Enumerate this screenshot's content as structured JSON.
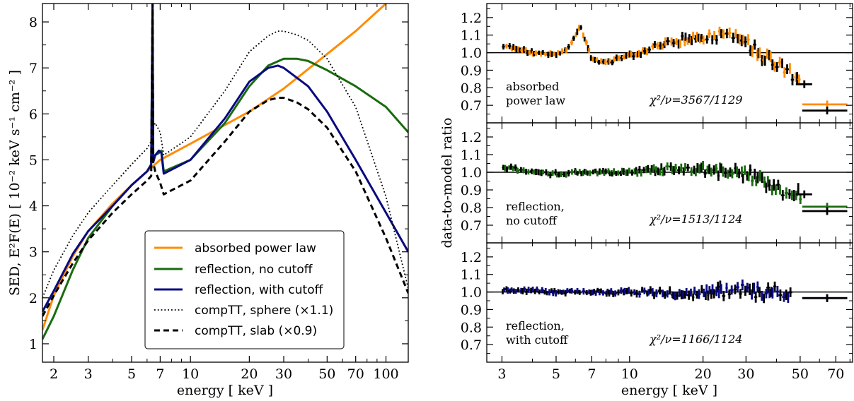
{
  "chart_data": [
    {
      "type": "line",
      "xscale": "log",
      "xlim": [
        1.75,
        130
      ],
      "ylim": [
        0.6,
        8.4
      ],
      "xlabel": "energy [ keV ]",
      "ylabel": "SED, E²F(E) [ 10⁻² keV s⁻¹ cm⁻² ]",
      "xticks": [
        2,
        3,
        5,
        7,
        10,
        20,
        30,
        50,
        70,
        100
      ],
      "xtick_labels": [
        "2",
        "3",
        "5",
        "7",
        "10",
        "20",
        "30",
        "50",
        "70",
        "100"
      ],
      "yticks": [
        1,
        2,
        3,
        4,
        5,
        6,
        7,
        8
      ],
      "ytick_labels": [
        "1",
        "2",
        "3",
        "4",
        "5",
        "6",
        "7",
        "8"
      ],
      "legend_position": "bottom-center",
      "series": [
        {
          "name": "absorbed power law",
          "color": "#ff8c00",
          "style": "solid",
          "x": [
            1.75,
            2,
            2.5,
            3,
            4,
            5,
            6,
            7,
            10,
            20,
            30,
            50,
            70,
            100
          ],
          "y": [
            1.3,
            2.05,
            2.9,
            3.45,
            4.05,
            4.45,
            4.75,
            5.0,
            5.35,
            6.05,
            6.55,
            7.3,
            7.8,
            8.4
          ]
        },
        {
          "name": "reflection, no cutoff",
          "color": "#1a6b0f",
          "style": "solid",
          "x": [
            1.75,
            2,
            2.5,
            3,
            4,
            5,
            6,
            6.3,
            6.4,
            6.45,
            6.6,
            6.9,
            7.1,
            7.3,
            10,
            15,
            20,
            25,
            30,
            35,
            40,
            50,
            70,
            100,
            130
          ],
          "y": [
            1.1,
            1.6,
            2.6,
            3.3,
            4.0,
            4.45,
            4.75,
            4.9,
            8.4,
            4.95,
            5.1,
            5.15,
            5.2,
            4.75,
            5.0,
            5.8,
            6.6,
            7.05,
            7.2,
            7.2,
            7.15,
            6.95,
            6.6,
            6.15,
            5.6
          ]
        },
        {
          "name": "reflection, with cutoff",
          "color": "#0a0a80",
          "style": "solid",
          "x": [
            1.75,
            2,
            2.5,
            3,
            4,
            5,
            6,
            6.3,
            6.4,
            6.45,
            6.6,
            6.9,
            7.1,
            7.3,
            10,
            15,
            20,
            25,
            28,
            30,
            40,
            50,
            70,
            100,
            130
          ],
          "y": [
            1.7,
            2.15,
            2.95,
            3.45,
            4.0,
            4.45,
            4.75,
            4.9,
            8.4,
            4.95,
            5.1,
            5.2,
            5.15,
            4.7,
            5.0,
            5.9,
            6.7,
            7.0,
            7.05,
            7.0,
            6.6,
            6.05,
            5.0,
            3.85,
            3.0
          ]
        },
        {
          "name": "compTT, sphere (×1.1)",
          "color": "#000000",
          "style": "dotted",
          "x": [
            1.75,
            2,
            2.5,
            3,
            4,
            5,
            6,
            6.3,
            6.4,
            6.45,
            6.6,
            7.0,
            7.3,
            10,
            15,
            20,
            25,
            28,
            30,
            35,
            40,
            50,
            70,
            100,
            130
          ],
          "y": [
            2.0,
            2.6,
            3.35,
            3.85,
            4.45,
            4.9,
            5.25,
            5.4,
            8.4,
            5.7,
            5.8,
            5.6,
            5.1,
            5.5,
            6.5,
            7.35,
            7.7,
            7.8,
            7.8,
            7.72,
            7.6,
            7.2,
            6.15,
            4.2,
            2.2
          ]
        },
        {
          "name": "compTT, slab (×0.9)",
          "color": "#000000",
          "style": "dashed",
          "x": [
            1.75,
            2,
            2.5,
            3,
            4,
            5,
            6,
            6.3,
            6.4,
            6.45,
            6.6,
            7.0,
            7.3,
            10,
            15,
            20,
            25,
            28,
            30,
            35,
            40,
            50,
            70,
            100,
            130
          ],
          "y": [
            1.6,
            2.05,
            2.75,
            3.25,
            3.85,
            4.25,
            4.55,
            4.65,
            8.4,
            4.95,
            4.75,
            4.5,
            4.25,
            4.55,
            5.4,
            6.05,
            6.3,
            6.35,
            6.35,
            6.25,
            6.1,
            5.7,
            4.75,
            3.3,
            2.1
          ]
        }
      ]
    },
    {
      "type": "scatter",
      "xscale": "log",
      "xlim": [
        2.6,
        82
      ],
      "xlabel": "energy [ keV ]",
      "ylabel": "data-to-model ratio",
      "xticks": [
        3,
        5,
        7,
        10,
        20,
        30,
        50,
        70
      ],
      "xtick_labels": [
        "3",
        "5",
        "7",
        "10",
        "20",
        "30",
        "50",
        "70"
      ],
      "panels": [
        {
          "label_lines": [
            "absorbed",
            "power law"
          ],
          "chi2": "χ²/ν=3567/1129",
          "ylim": [
            0.6,
            1.28
          ],
          "yticks": [
            0.7,
            0.8,
            0.9,
            1.0,
            1.1,
            1.2
          ],
          "ytick_labels": [
            "0.7",
            "0.8",
            "0.9",
            "1.0",
            "1.1",
            "1.2"
          ],
          "model_color": "#ff8c00",
          "trend": {
            "x": [
              3,
              3.5,
              4,
              4.5,
              5,
              5.5,
              6,
              6.3,
              6.6,
              7,
              8,
              9,
              10,
              12,
              15,
              18,
              20,
              25,
              28,
              30,
              35,
              40,
              45,
              50
            ],
            "y": [
              1.04,
              1.02,
              1.0,
              0.99,
              0.99,
              1.01,
              1.1,
              1.15,
              1.07,
              0.96,
              0.95,
              0.96,
              0.98,
              1.02,
              1.06,
              1.08,
              1.09,
              1.11,
              1.11,
              1.06,
              0.99,
              0.94,
              0.89,
              0.86
            ]
          },
          "high_energy_bins": [
            {
              "group": "orange",
              "x": 64.5,
              "xmin": 51,
              "xmax": 78,
              "y": 0.705
            },
            {
              "group": "black",
              "x": 64.5,
              "xmin": 51,
              "xmax": 78,
              "y": 0.67
            },
            {
              "group": "black",
              "x": 52,
              "xmin": 48,
              "xmax": 56,
              "y": 0.82
            }
          ]
        },
        {
          "label_lines": [
            "reflection,",
            "no cutoff"
          ],
          "chi2": "χ²/ν=1513/1124",
          "ylim": [
            0.6,
            1.28
          ],
          "yticks": [
            0.7,
            0.8,
            0.9,
            1.0,
            1.1,
            1.2
          ],
          "ytick_labels": [
            "0.7",
            "0.8",
            "0.9",
            "1.0",
            "1.1",
            "1.2"
          ],
          "model_color": "#1a6b0f",
          "trend": {
            "x": [
              3,
              4,
              5,
              6,
              7,
              8,
              10,
              12,
              15,
              18,
              20,
              25,
              28,
              30,
              35,
              40,
              45,
              50
            ],
            "y": [
              1.03,
              1.0,
              0.99,
              1.0,
              1.0,
              1.0,
              1.0,
              1.01,
              1.02,
              1.02,
              1.02,
              1.0,
              1.0,
              0.99,
              0.95,
              0.91,
              0.89,
              0.87
            ]
          },
          "high_energy_bins": [
            {
              "group": "green",
              "x": 64.5,
              "xmin": 51,
              "xmax": 78,
              "y": 0.805
            },
            {
              "group": "black",
              "x": 64.5,
              "xmin": 51,
              "xmax": 78,
              "y": 0.78
            },
            {
              "group": "black",
              "x": 52,
              "xmin": 48,
              "xmax": 56,
              "y": 0.875
            }
          ]
        },
        {
          "label_lines": [
            "reflection,",
            "with cutoff"
          ],
          "chi2": "χ²/ν=1166/1124",
          "ylim": [
            0.6,
            1.28
          ],
          "yticks": [
            0.7,
            0.8,
            0.9,
            1.0,
            1.1,
            1.2
          ],
          "ytick_labels": [
            "0.7",
            "0.8",
            "0.9",
            "1.0",
            "1.1",
            "1.2"
          ],
          "model_color": "#0a0a80",
          "trend": {
            "x": [
              3,
              4,
              5,
              6,
              7,
              8,
              10,
              12,
              15,
              18,
              20,
              25,
              28,
              30,
              35,
              40,
              45
            ],
            "y": [
              1.01,
              1.01,
              1.0,
              1.0,
              1.0,
              1.0,
              1.0,
              1.0,
              0.99,
              0.99,
              1.0,
              1.01,
              1.02,
              1.01,
              1.0,
              1.0,
              0.99
            ]
          },
          "high_energy_bins": [
            {
              "group": "blue",
              "x": 64.5,
              "xmin": 51,
              "xmax": 78,
              "y": 0.965
            },
            {
              "group": "black",
              "x": 64.5,
              "xmin": 51,
              "xmax": 78,
              "y": 0.965
            }
          ]
        }
      ]
    }
  ]
}
